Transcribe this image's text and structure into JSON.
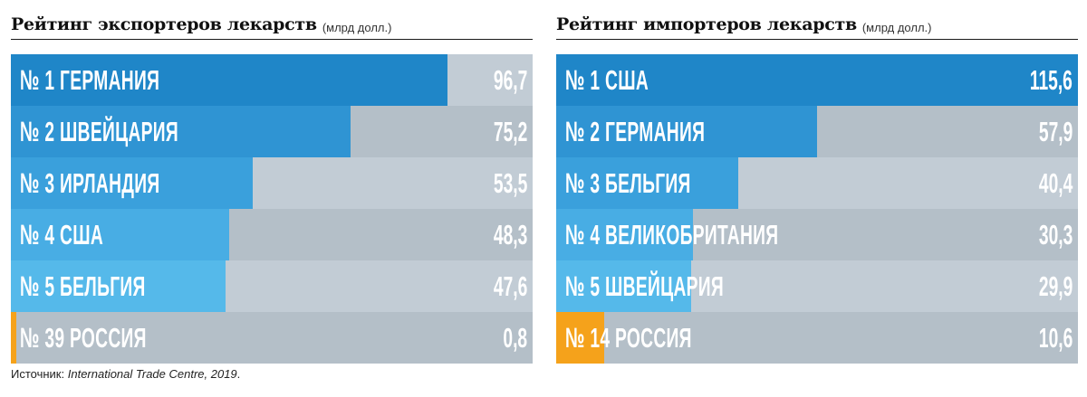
{
  "chart_data": [
    {
      "type": "bar",
      "title": "Рейтинг экспортеров лекарств",
      "unit": "(млрд долл.)",
      "categories": [
        "№ 1 ГЕРМАНИЯ",
        "№ 2 ШВЕЙЦАРИЯ",
        "№ 3 ИРЛАНДИЯ",
        "№ 4 США",
        "№ 5 БЕЛЬГИЯ",
        "№ 39 РОССИЯ"
      ],
      "values": [
        96.7,
        75.2,
        53.5,
        48.3,
        47.6,
        0.8
      ],
      "value_labels": [
        "96,7",
        "75,2",
        "53,5",
        "48,3",
        "47,6",
        "0,8"
      ],
      "bar_colors": [
        "#1f86c8",
        "#2f94d3",
        "#3aa0dc",
        "#48ade4",
        "#55b9ea",
        "#f5a21b"
      ],
      "xlim": [
        0,
        115.6
      ]
    },
    {
      "type": "bar",
      "title": "Рейтинг импортеров лекарств",
      "unit": "(млрд долл.)",
      "categories": [
        "№ 1 США",
        "№ 2 ГЕРМАНИЯ",
        "№ 3 БЕЛЬГИЯ",
        "№ 4 ВЕЛИКОБРИТАНИЯ",
        "№ 5 ШВЕЙЦАРИЯ",
        "№ 14 РОССИЯ"
      ],
      "values": [
        115.6,
        57.9,
        40.4,
        30.3,
        29.9,
        10.6
      ],
      "value_labels": [
        "115,6",
        "57,9",
        "40,4",
        "30,3",
        "29,9",
        "10,6"
      ],
      "bar_colors": [
        "#1f86c8",
        "#2f94d3",
        "#3aa0dc",
        "#48ade4",
        "#55b9ea",
        "#f5a21b"
      ],
      "xlim": [
        0,
        115.6
      ]
    }
  ],
  "source": {
    "prefix": "Источник:",
    "text": "International Trade Centre, 2019"
  }
}
